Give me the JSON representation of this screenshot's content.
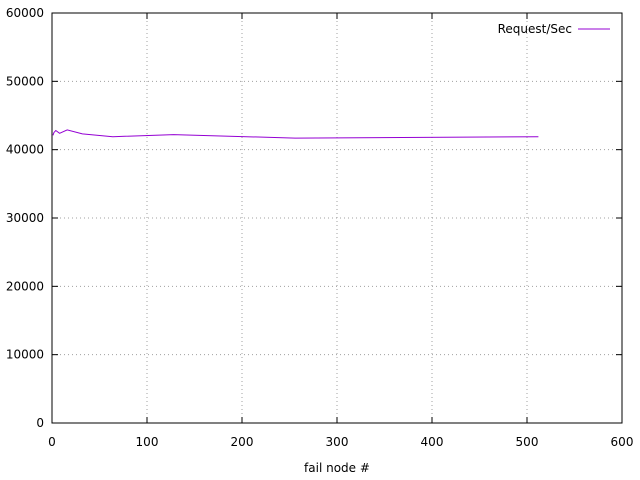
{
  "chart_data": {
    "type": "line",
    "title": "",
    "xlabel": "fail node #",
    "ylabel": "",
    "xlim": [
      0,
      600
    ],
    "ylim": [
      0,
      60000
    ],
    "xticks": [
      "0",
      "100",
      "200",
      "300",
      "400",
      "500",
      "600"
    ],
    "yticks": [
      "0",
      "10000",
      "20000",
      "30000",
      "40000",
      "50000",
      "60000"
    ],
    "grid": true,
    "legend_position": "top-right",
    "series": [
      {
        "name": "Request/Sec",
        "color": "#9400d3",
        "x": [
          1,
          2,
          4,
          8,
          16,
          32,
          64,
          128,
          256,
          512
        ],
        "y": [
          42100,
          42500,
          42800,
          42400,
          42900,
          42300,
          41900,
          42200,
          41700,
          41900
        ]
      }
    ]
  }
}
